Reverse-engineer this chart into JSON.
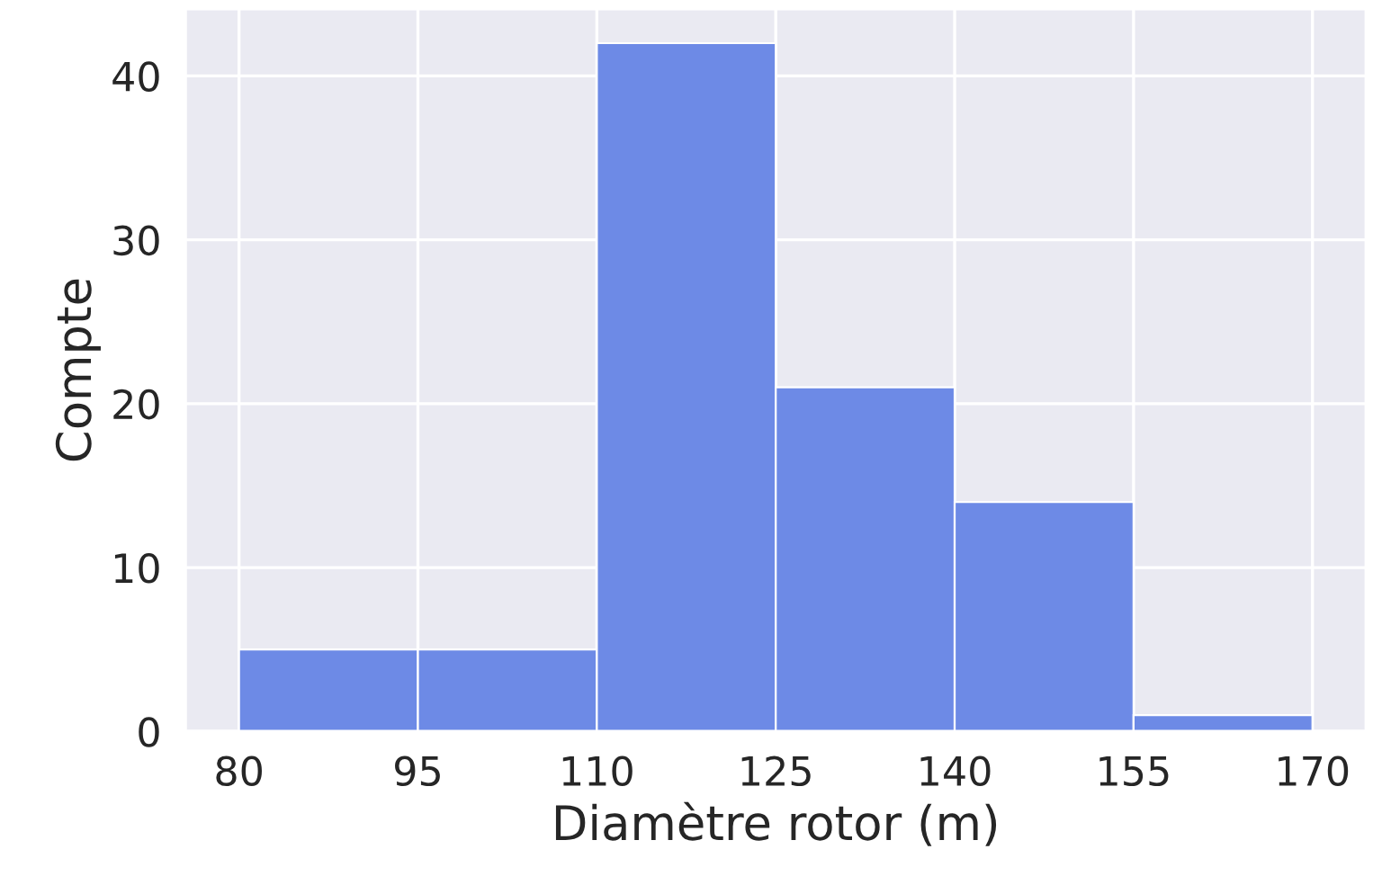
{
  "chart_data": {
    "type": "histogram",
    "xlabel": "Diamètre rotor (m)",
    "ylabel": "Compte",
    "bins": [
      80,
      95,
      110,
      125,
      140,
      155,
      170
    ],
    "values": [
      5,
      5,
      42,
      21,
      14,
      1
    ],
    "color": "#6d8ae6",
    "xlim": [
      75.5,
      174.5
    ],
    "xticks": [
      80,
      95,
      110,
      125,
      140,
      155,
      170
    ],
    "ylim": [
      0,
      44.1
    ],
    "yticks": [
      0,
      10,
      20,
      30,
      40
    ],
    "grid": true
  }
}
